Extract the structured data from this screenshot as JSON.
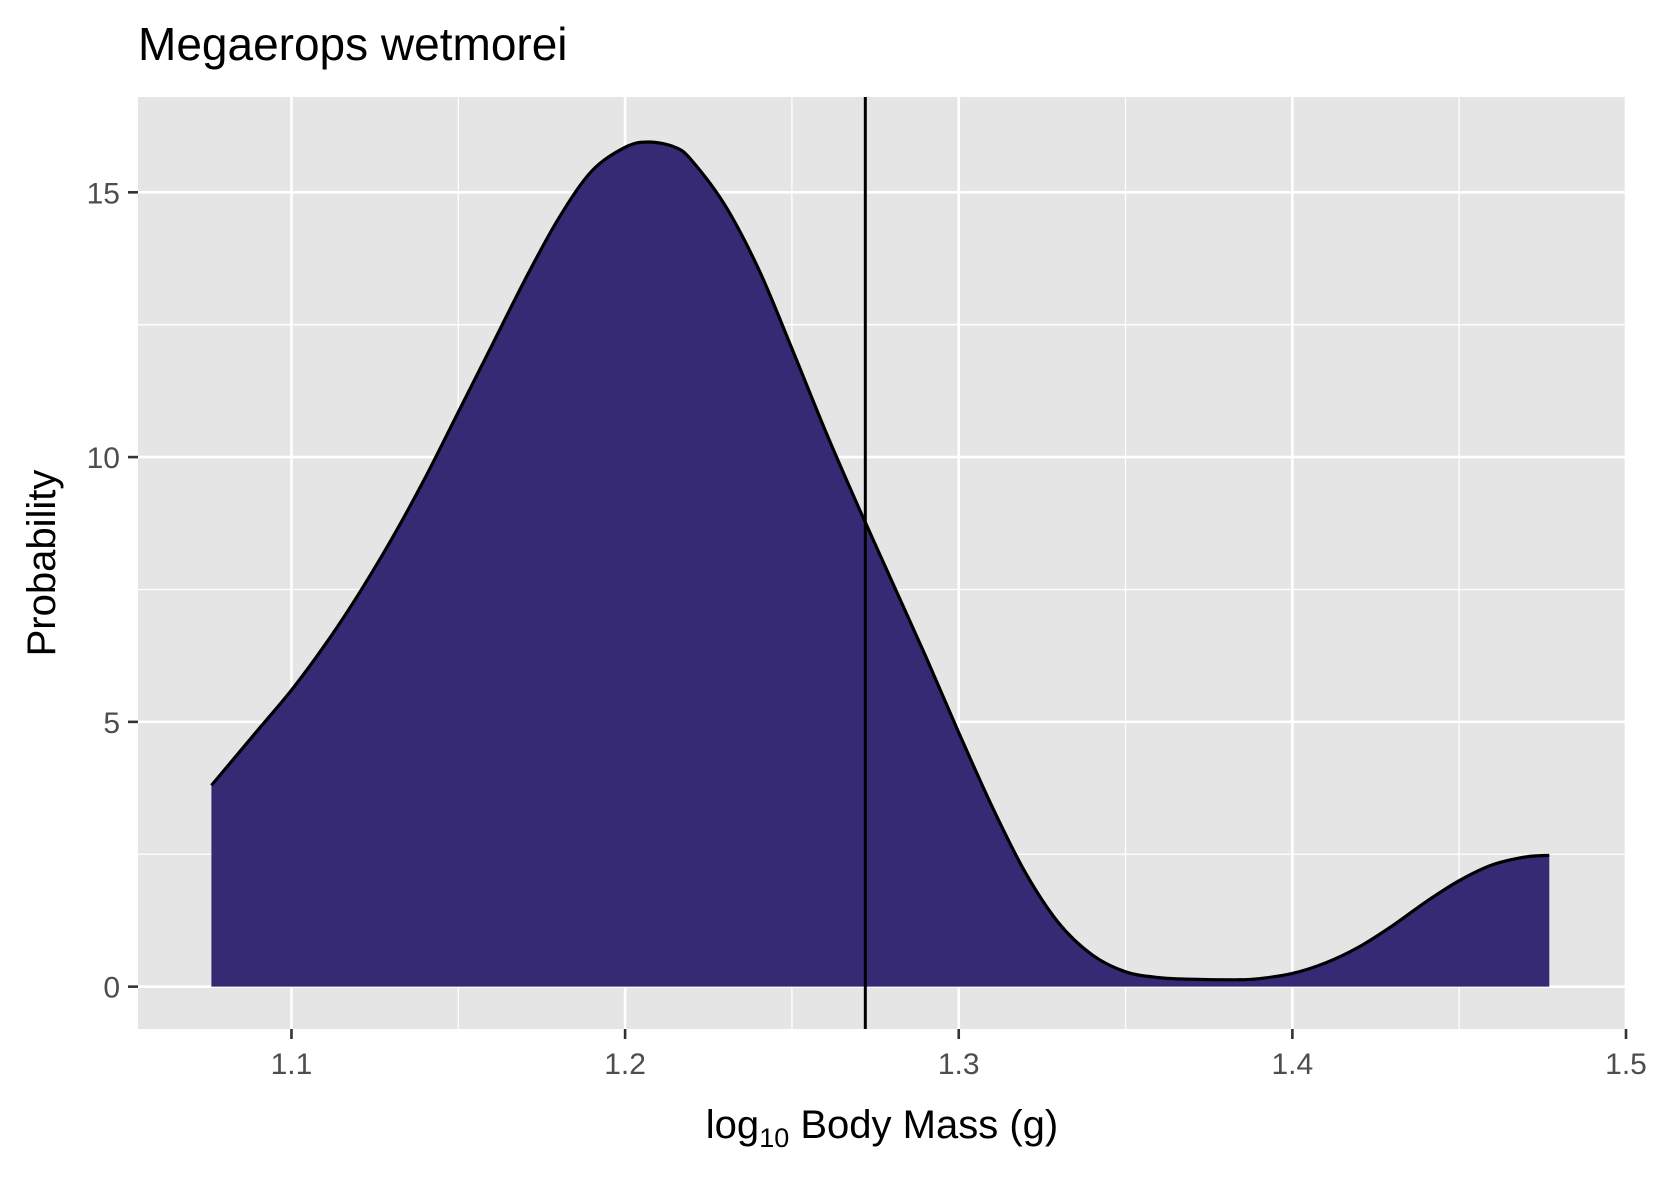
{
  "chart_data": {
    "type": "area",
    "title": "Megaerops wetmorei",
    "xlabel": {
      "prefix": "log",
      "subscript": "10",
      "suffix": " Body Mass (g)"
    },
    "ylabel": "Probability",
    "xlim": [
      1.054,
      1.5
    ],
    "ylim": [
      -0.8,
      16.8
    ],
    "xticks": [
      1.1,
      1.2,
      1.3,
      1.4,
      1.5
    ],
    "xtick_labels": [
      "1.1",
      "1.2",
      "1.3",
      "1.4",
      "1.5"
    ],
    "yticks": [
      0,
      5,
      10,
      15
    ],
    "ytick_labels": [
      "0",
      "5",
      "10",
      "15"
    ],
    "grid": true,
    "legend": "none",
    "series": [
      {
        "x": [
          1.076,
          1.09,
          1.1,
          1.11,
          1.12,
          1.13,
          1.14,
          1.15,
          1.16,
          1.17,
          1.18,
          1.19,
          1.2,
          1.207,
          1.215,
          1.22,
          1.23,
          1.24,
          1.25,
          1.26,
          1.27,
          1.28,
          1.29,
          1.3,
          1.31,
          1.32,
          1.33,
          1.34,
          1.35,
          1.36,
          1.37,
          1.383,
          1.39,
          1.4,
          1.41,
          1.42,
          1.43,
          1.44,
          1.45,
          1.46,
          1.47,
          1.477
        ],
        "y": [
          3.8,
          4.85,
          5.6,
          6.45,
          7.4,
          8.45,
          9.6,
          10.85,
          12.1,
          13.35,
          14.5,
          15.4,
          15.85,
          15.95,
          15.85,
          15.6,
          14.75,
          13.55,
          12.05,
          10.5,
          9.05,
          7.65,
          6.25,
          4.8,
          3.4,
          2.15,
          1.2,
          0.6,
          0.28,
          0.17,
          0.14,
          0.13,
          0.15,
          0.25,
          0.45,
          0.75,
          1.15,
          1.6,
          2.0,
          2.3,
          2.45,
          2.48
        ],
        "color": "#372A75"
      }
    ],
    "vline": {
      "x": 1.272,
      "color": "#000000"
    },
    "colors": {
      "panel": "#E5E5E5",
      "grid": "#FFFFFF",
      "fill": "#372A75",
      "outline": "#000000"
    }
  }
}
